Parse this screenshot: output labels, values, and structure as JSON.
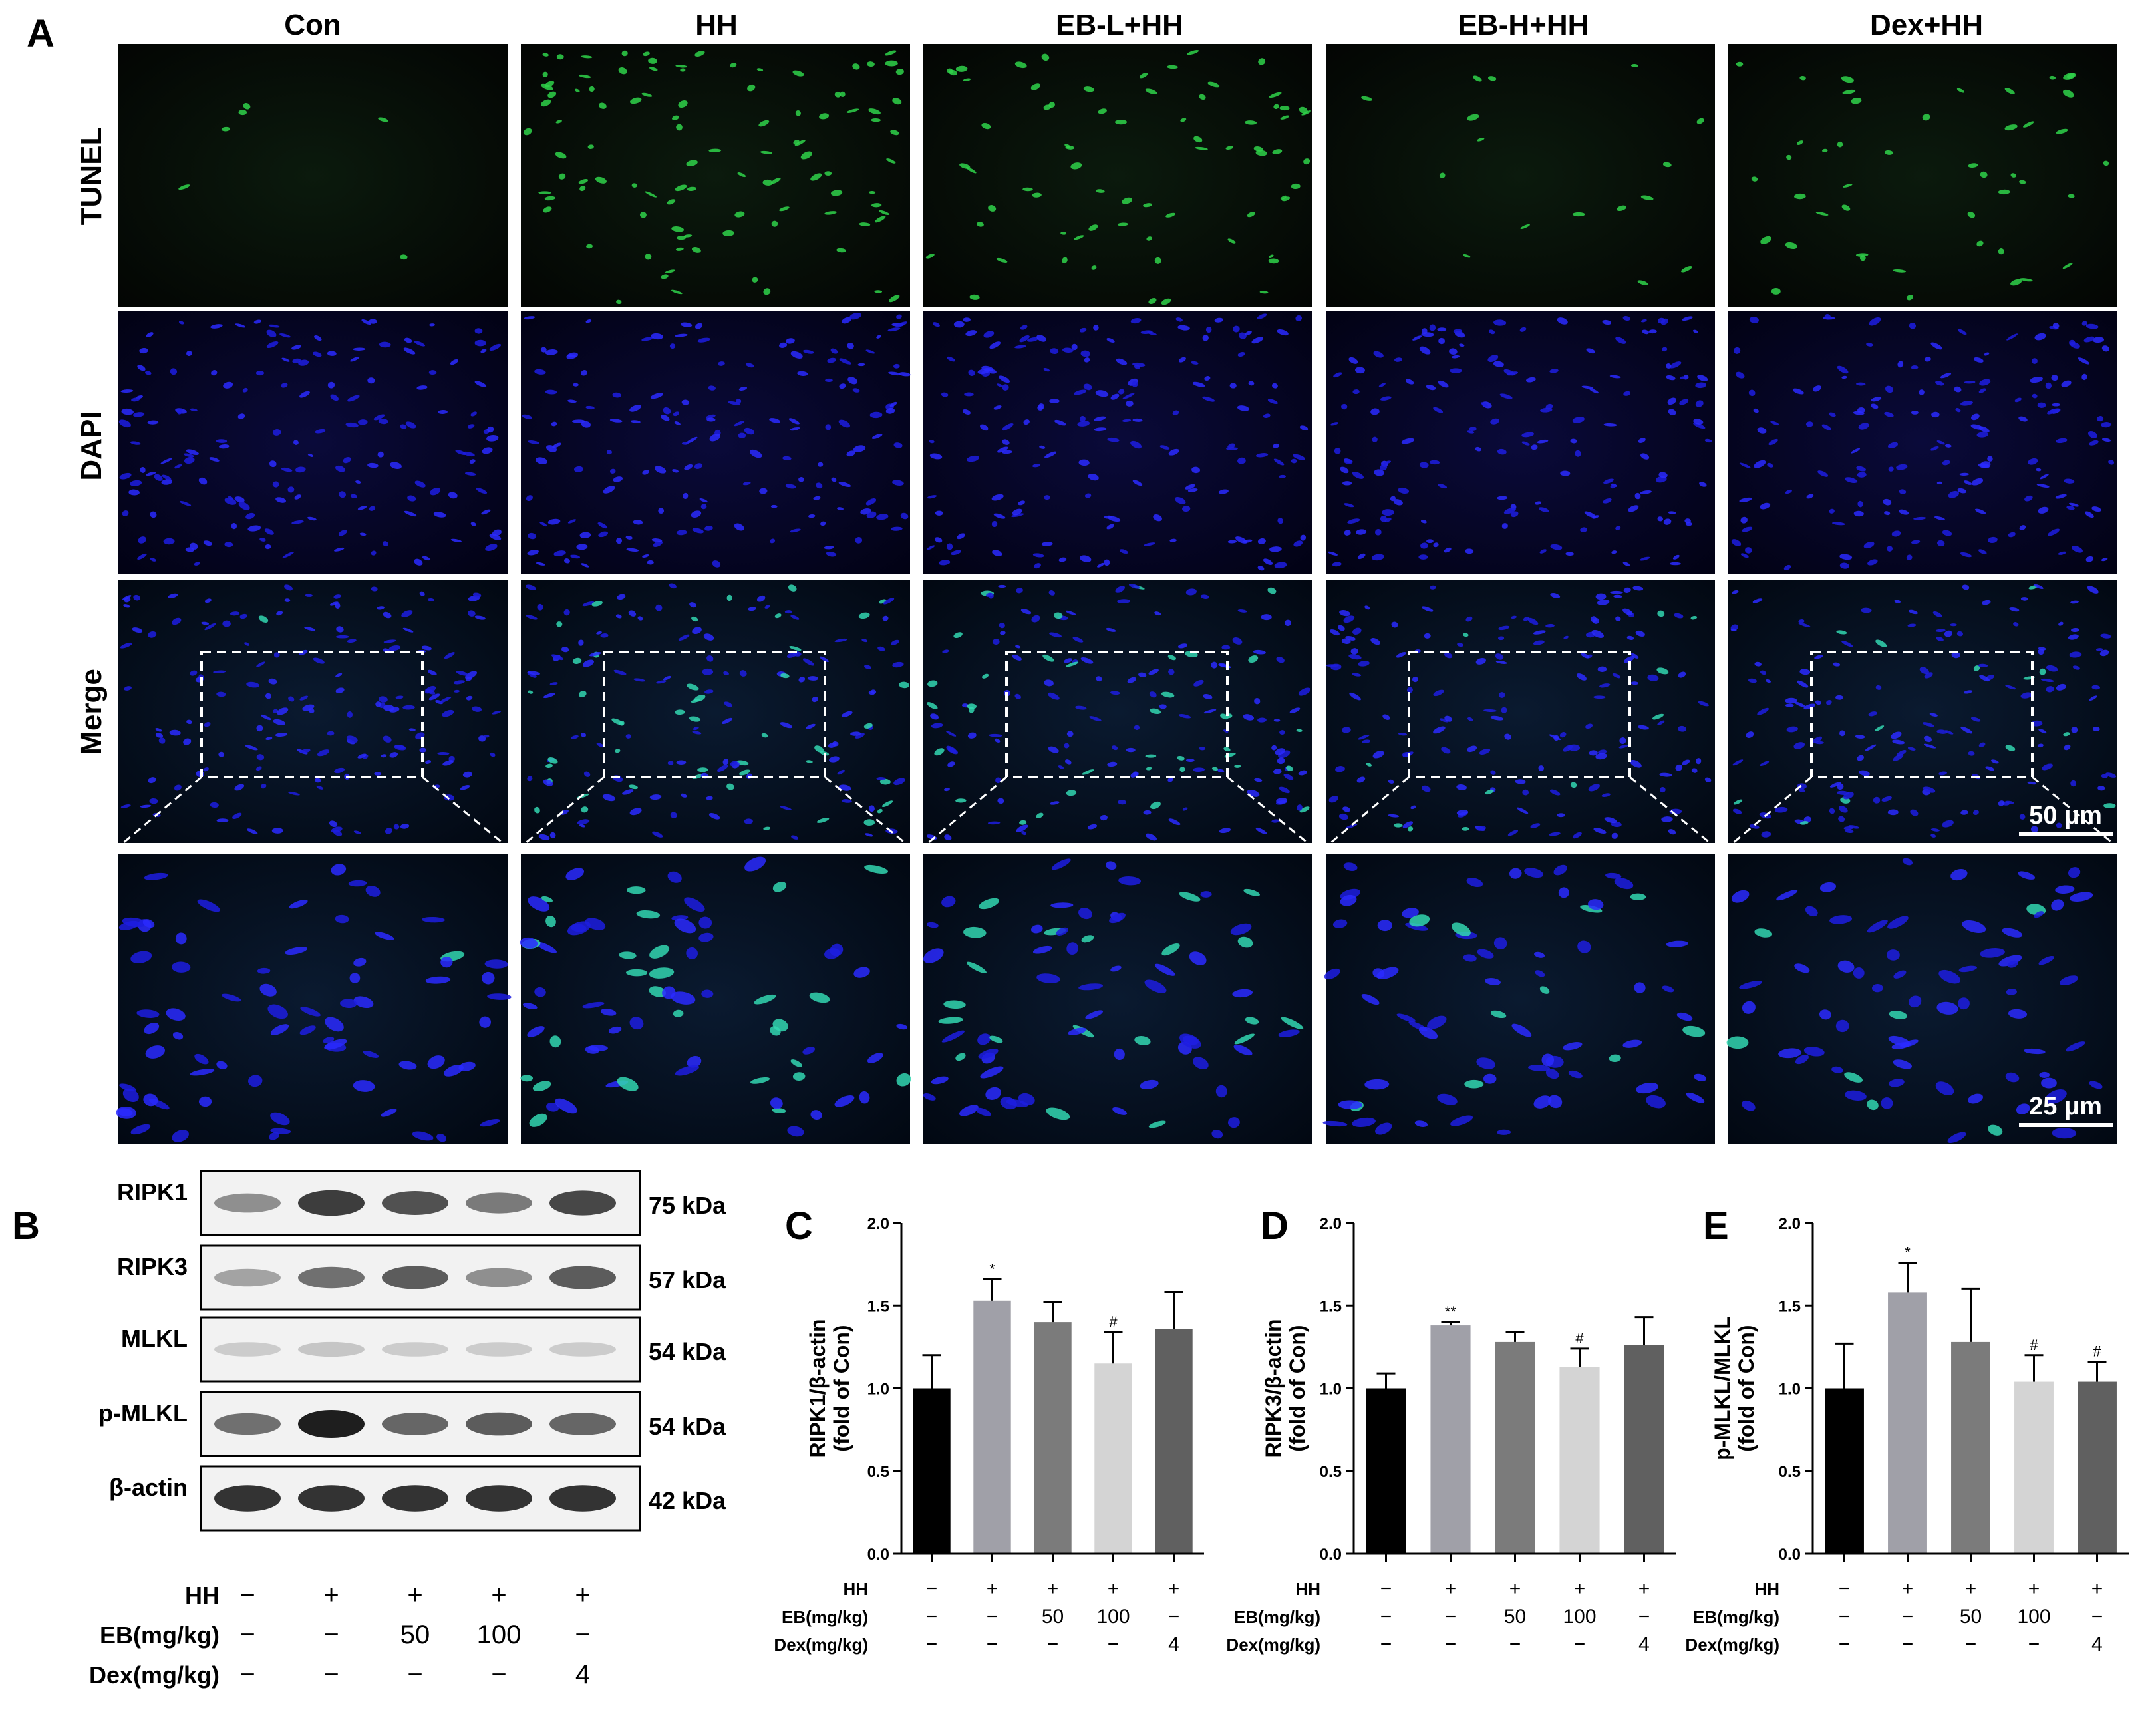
{
  "panel_a": {
    "letter": "A",
    "columns": [
      "Con",
      "HH",
      "EB-L+HH",
      "EB-H+HH",
      "Dex+HH"
    ],
    "rows": [
      {
        "label": "TUNEL",
        "color": "#12b04a"
      },
      {
        "label": "DAPI",
        "color": "#1515ff"
      },
      {
        "label": "Merge",
        "color": "#000000"
      }
    ],
    "scale_bar_merge": "50 μm",
    "scale_bar_zoom": "25 μm"
  },
  "panel_b": {
    "letter": "B",
    "bands": [
      {
        "protein": "RIPK1",
        "size": "75 kDa",
        "intensity": [
          0.45,
          0.85,
          0.75,
          0.55,
          0.8
        ]
      },
      {
        "protein": "RIPK3",
        "size": "57 kDa",
        "intensity": [
          0.35,
          0.6,
          0.7,
          0.45,
          0.7
        ]
      },
      {
        "protein": "MLKL",
        "size": "54 kDa",
        "intensity": [
          0.15,
          0.18,
          0.15,
          0.15,
          0.15
        ]
      },
      {
        "protein": "p-MLKL",
        "size": "54 kDa",
        "intensity": [
          0.6,
          1.0,
          0.65,
          0.7,
          0.65
        ]
      },
      {
        "protein": "β-actin",
        "size": "42 kDa",
        "intensity": [
          0.9,
          0.9,
          0.9,
          0.9,
          0.9
        ]
      }
    ],
    "conditions": [
      {
        "label": "HH",
        "values": [
          "−",
          "+",
          "+",
          "+",
          "+"
        ]
      },
      {
        "label": "EB(mg/kg)",
        "values": [
          "−",
          "−",
          "50",
          "100",
          "−"
        ]
      },
      {
        "label": "Dex(mg/kg)",
        "values": [
          "−",
          "−",
          "−",
          "−",
          "4"
        ]
      }
    ]
  },
  "chart_data": [
    {
      "panel": "C",
      "type": "bar",
      "ylabel_line1": "RIPK1/β-actin",
      "ylabel_line2": "(fold of Con)",
      "ylim": [
        0,
        2.0
      ],
      "yticks": [
        "0.0",
        "0.5",
        "1.0",
        "1.5",
        "2.0"
      ],
      "values": [
        1.0,
        1.53,
        1.4,
        1.15,
        1.36
      ],
      "errors": [
        0.2,
        0.13,
        0.12,
        0.19,
        0.22
      ],
      "significance": [
        "",
        "*",
        "",
        "#",
        ""
      ],
      "colors": [
        "#000000",
        "#a0a0a8",
        "#7b7b7b",
        "#d4d4d4",
        "#606060"
      ],
      "conditions": [
        {
          "label": "HH",
          "values": [
            "−",
            "+",
            "+",
            "+",
            "+"
          ]
        },
        {
          "label": "EB(mg/kg)",
          "values": [
            "−",
            "−",
            "50",
            "100",
            "−"
          ]
        },
        {
          "label": "Dex(mg/kg)",
          "values": [
            "−",
            "−",
            "−",
            "−",
            "4"
          ]
        }
      ]
    },
    {
      "panel": "D",
      "type": "bar",
      "ylabel_line1": "RIPK3/β-actin",
      "ylabel_line2": "(fold of Con)",
      "ylim": [
        0,
        2.0
      ],
      "yticks": [
        "0.0",
        "0.5",
        "1.0",
        "1.5",
        "2.0"
      ],
      "values": [
        1.0,
        1.38,
        1.28,
        1.13,
        1.26
      ],
      "errors": [
        0.09,
        0.02,
        0.06,
        0.11,
        0.17
      ],
      "significance": [
        "",
        "**",
        "",
        "#",
        ""
      ],
      "colors": [
        "#000000",
        "#a0a0a8",
        "#7b7b7b",
        "#d4d4d4",
        "#606060"
      ],
      "conditions": [
        {
          "label": "HH",
          "values": [
            "−",
            "+",
            "+",
            "+",
            "+"
          ]
        },
        {
          "label": "EB(mg/kg)",
          "values": [
            "−",
            "−",
            "50",
            "100",
            "−"
          ]
        },
        {
          "label": "Dex(mg/kg)",
          "values": [
            "−",
            "−",
            "−",
            "−",
            "4"
          ]
        }
      ]
    },
    {
      "panel": "E",
      "type": "bar",
      "ylabel_line1": "p-MLKL/MLKL",
      "ylabel_line2": "(fold of Con)",
      "ylim": [
        0,
        2.0
      ],
      "yticks": [
        "0.0",
        "0.5",
        "1.0",
        "1.5",
        "2.0"
      ],
      "values": [
        1.0,
        1.58,
        1.28,
        1.04,
        1.04
      ],
      "errors": [
        0.27,
        0.18,
        0.32,
        0.16,
        0.12
      ],
      "significance": [
        "",
        "*",
        "",
        "#",
        "#"
      ],
      "colors": [
        "#000000",
        "#a0a0a8",
        "#7b7b7b",
        "#d4d4d4",
        "#606060"
      ],
      "conditions": [
        {
          "label": "HH",
          "values": [
            "−",
            "+",
            "+",
            "+",
            "+"
          ]
        },
        {
          "label": "EB(mg/kg)",
          "values": [
            "−",
            "−",
            "50",
            "100",
            "−"
          ]
        },
        {
          "label": "Dex(mg/kg)",
          "values": [
            "−",
            "−",
            "−",
            "−",
            "4"
          ]
        }
      ]
    }
  ]
}
